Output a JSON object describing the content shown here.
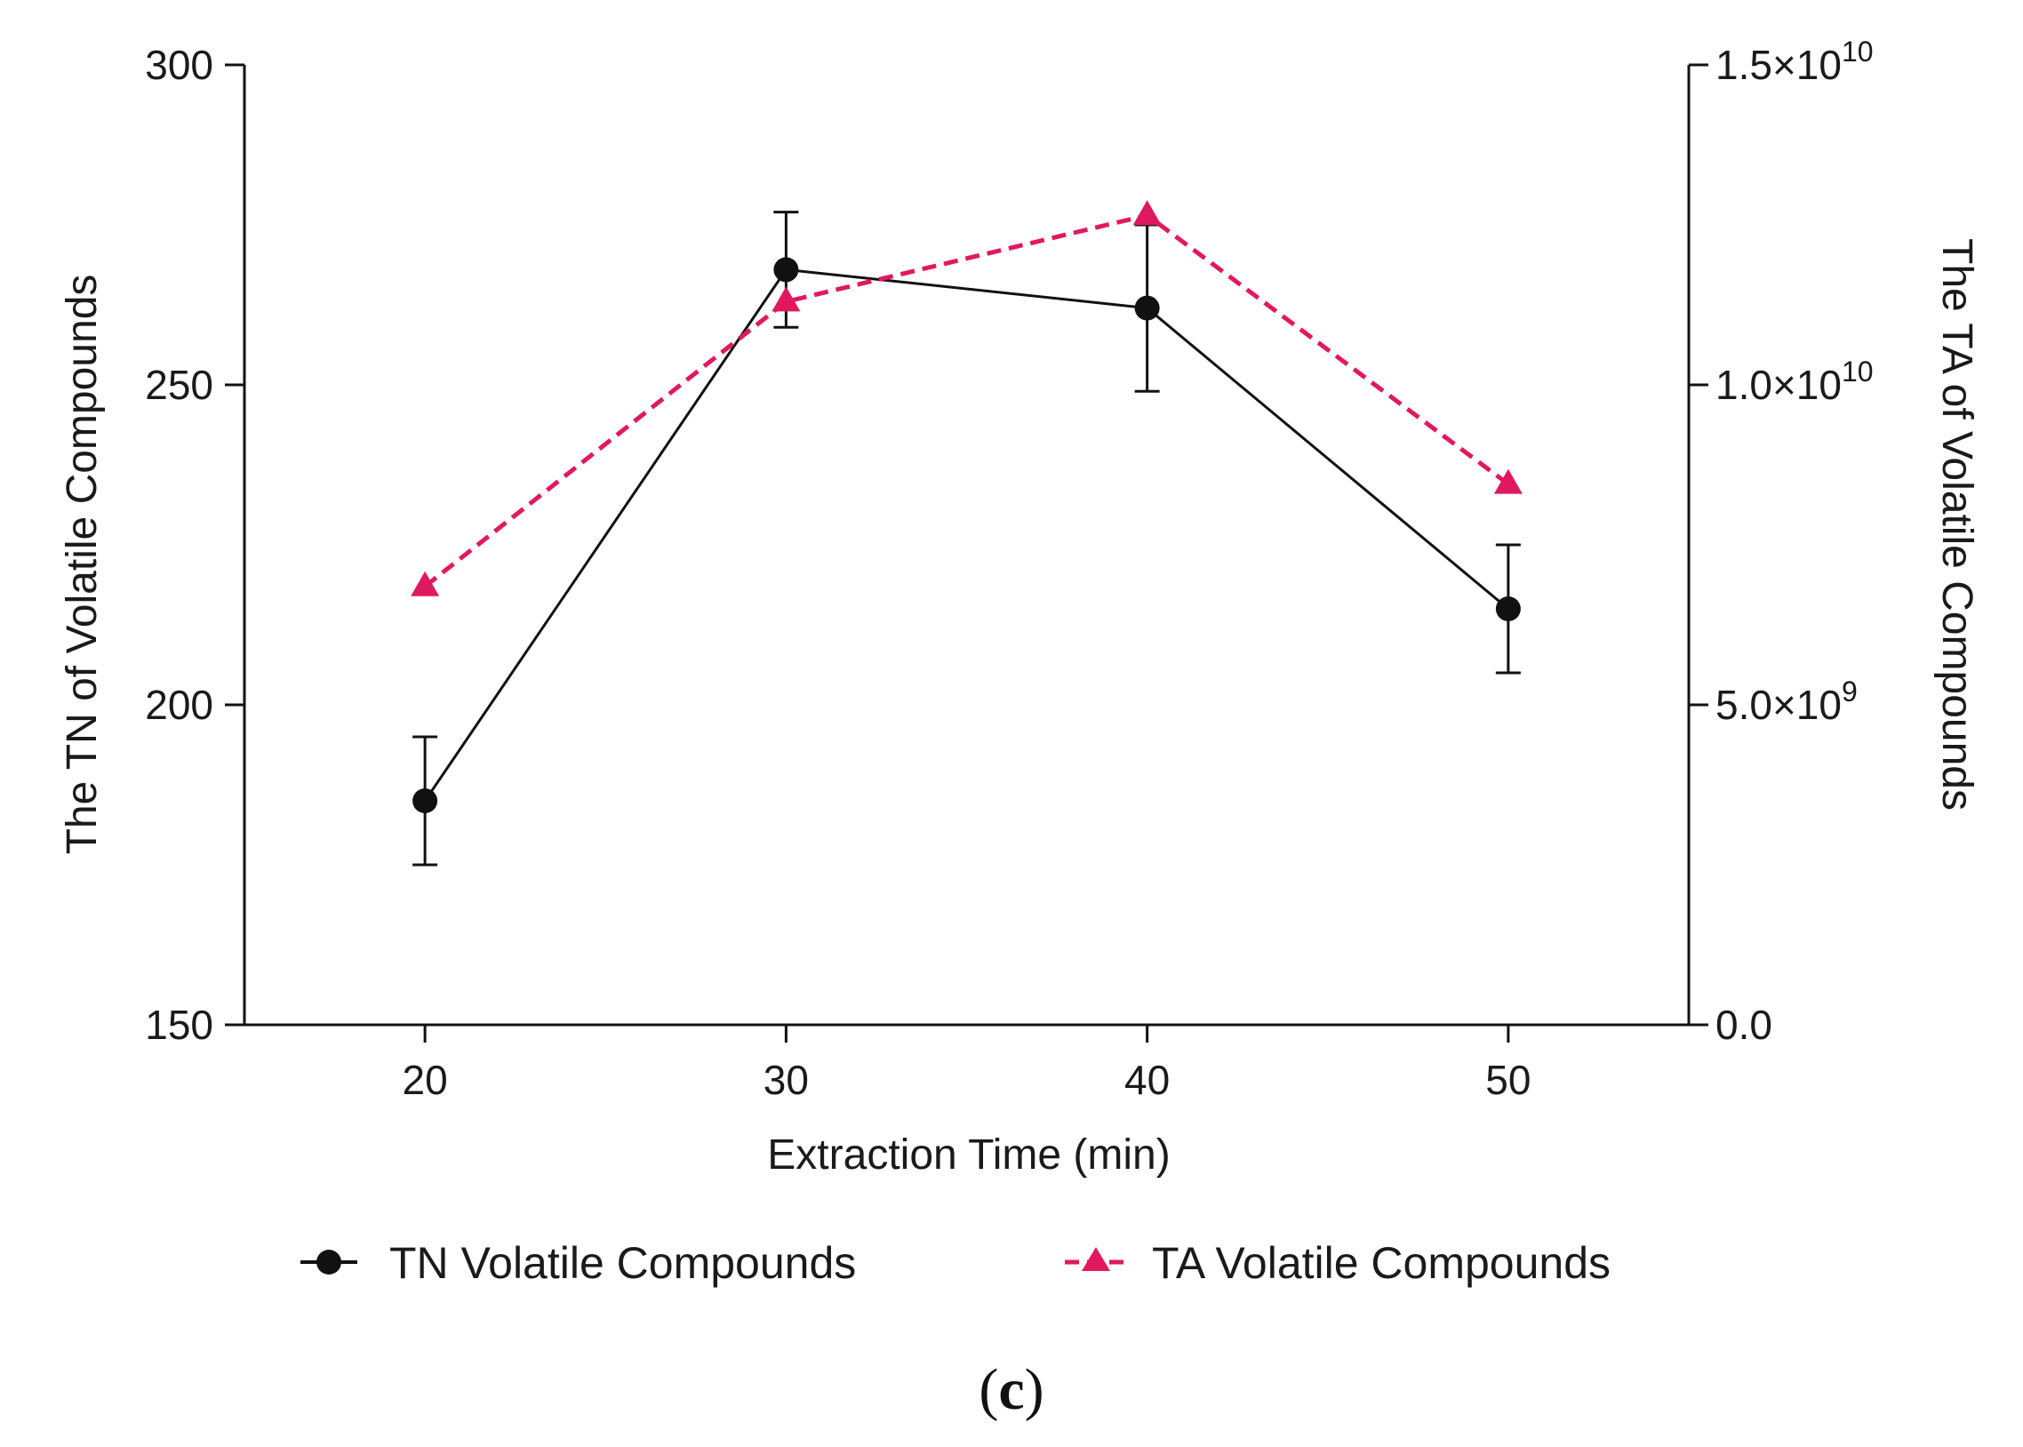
{
  "chart_data": {
    "type": "line",
    "title": "",
    "panel_label": {
      "open": "(",
      "letter": "c",
      "close": ")"
    },
    "xlabel": "Extraction Time (min)",
    "ylabel_left": "The TN of Volatile Compounds",
    "ylabel_right": "The TA of Volatile Compounds",
    "x": [
      20,
      30,
      40,
      50
    ],
    "xlim": [
      15,
      55
    ],
    "xticks": [
      20,
      30,
      40,
      50
    ],
    "ylim_left": [
      150,
      300
    ],
    "yticks_left": [
      150,
      200,
      250,
      300
    ],
    "ylim_right": [
      0,
      15000000000
    ],
    "yticks_right": [
      {
        "value": 0,
        "mantissa": "0.0",
        "exponent": ""
      },
      {
        "value": 5000000000,
        "mantissa": "5.0×10",
        "exponent": "9"
      },
      {
        "value": 10000000000,
        "mantissa": "1.0×10",
        "exponent": "10"
      },
      {
        "value": 15000000000,
        "mantissa": "1.5×10",
        "exponent": "10"
      }
    ],
    "grid": false,
    "legend_position": "bottom",
    "series": [
      {
        "name": "TN Volatile Compounds",
        "axis": "left",
        "color": "#111111",
        "marker": "circle",
        "line_style": "solid",
        "values": [
          185,
          268,
          262,
          215
        ],
        "error": [
          10,
          9,
          13,
          10
        ]
      },
      {
        "name": "TA Volatile Compounds",
        "axis": "right",
        "color": "#e0195e",
        "marker": "triangle",
        "line_style": "dashed",
        "values": [
          6850000000,
          11300000000,
          12650000000,
          8450000000
        ]
      }
    ]
  }
}
